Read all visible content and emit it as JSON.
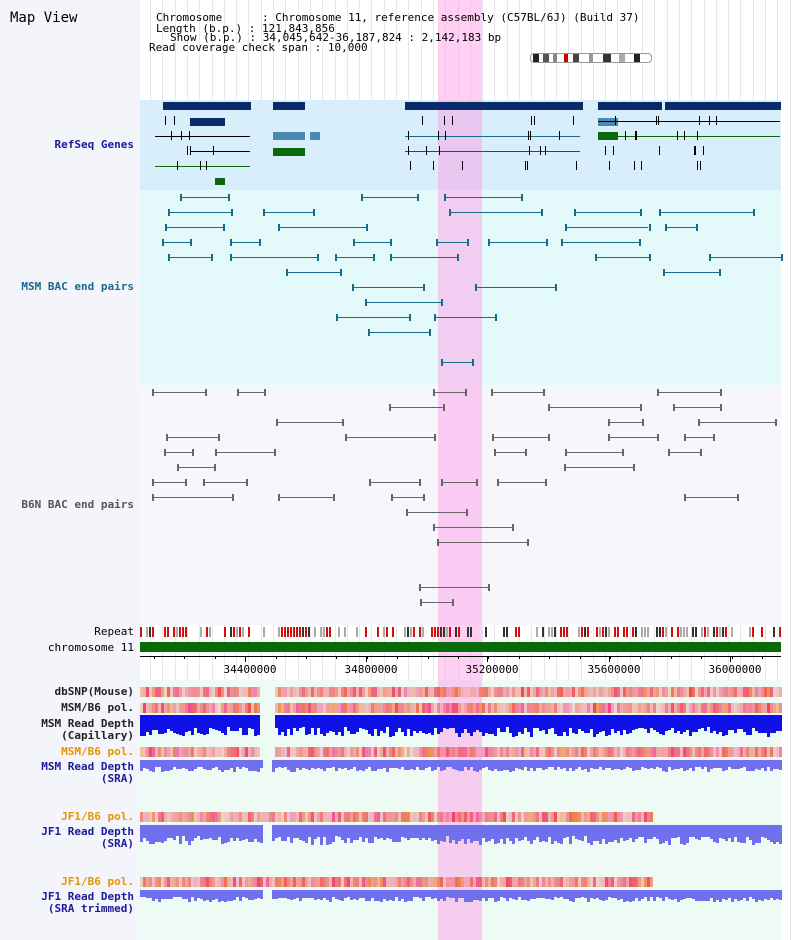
{
  "header": {
    "title": "Map View",
    "info": [
      {
        "key": "Chromosome",
        "value": "Chromosome 11, reference assembly (C57BL/6J) (Build 37)"
      },
      {
        "key": "Length (b.p.)",
        "value": "121,843,856"
      },
      {
        "key": "Show (b.p.)",
        "value": "34,045,642-36,187,824 : 2,142,183 bp"
      },
      {
        "key": "Read coverage check span",
        "value": "10,000"
      }
    ]
  },
  "tracks": {
    "refseq": {
      "label": "RefSeq Genes",
      "color": "#1a1a9a"
    },
    "msm_bac": {
      "label": "MSM BAC end pairs",
      "color": "#1a6a8a"
    },
    "b6n_bac": {
      "label": "B6N BAC end pairs",
      "color": "#555555"
    },
    "repeat": {
      "label": "Repeat"
    },
    "chromosome": {
      "label": "chromosome 11"
    },
    "dbsnp": {
      "label": "dbSNP(Mouse)"
    },
    "msm_b6_pol": {
      "label": "MSM/B6 pol."
    },
    "msm_depth_cap": {
      "label": "MSM Read Depth\n(Capillary)"
    },
    "msm_b6_pol2": {
      "label": "MSM/B6 pol.",
      "color": "#e69500"
    },
    "msm_depth_sra": {
      "label": "MSM Read Depth\n(SRA)"
    },
    "jf1_b6_pol": {
      "label": "JF1/B6 pol.",
      "color": "#e69500"
    },
    "jf1_depth_sra": {
      "label": "JF1 Read Depth\n(SRA)"
    },
    "jf1_b6_pol2": {
      "label": "JF1/B6 pol.",
      "color": "#e69500"
    },
    "jf1_depth_trim": {
      "label": "JF1 Read Depth\n(SRA trimmed)"
    }
  },
  "axis": {
    "ticks": [
      "34400000",
      "34800000",
      "35200000",
      "35600000",
      "36000000"
    ]
  },
  "colors": {
    "refseq_bg": "#d8eefa",
    "msm_bg": "#e4fafa",
    "navy": "#0a2a6a",
    "teal": "#1a6a8a",
    "green": "#0a6a0a",
    "snp_red": "#ee4444",
    "depth_blue": "#1010e8",
    "depth_light": "#7070ee",
    "highlight": "#ffaaee"
  }
}
